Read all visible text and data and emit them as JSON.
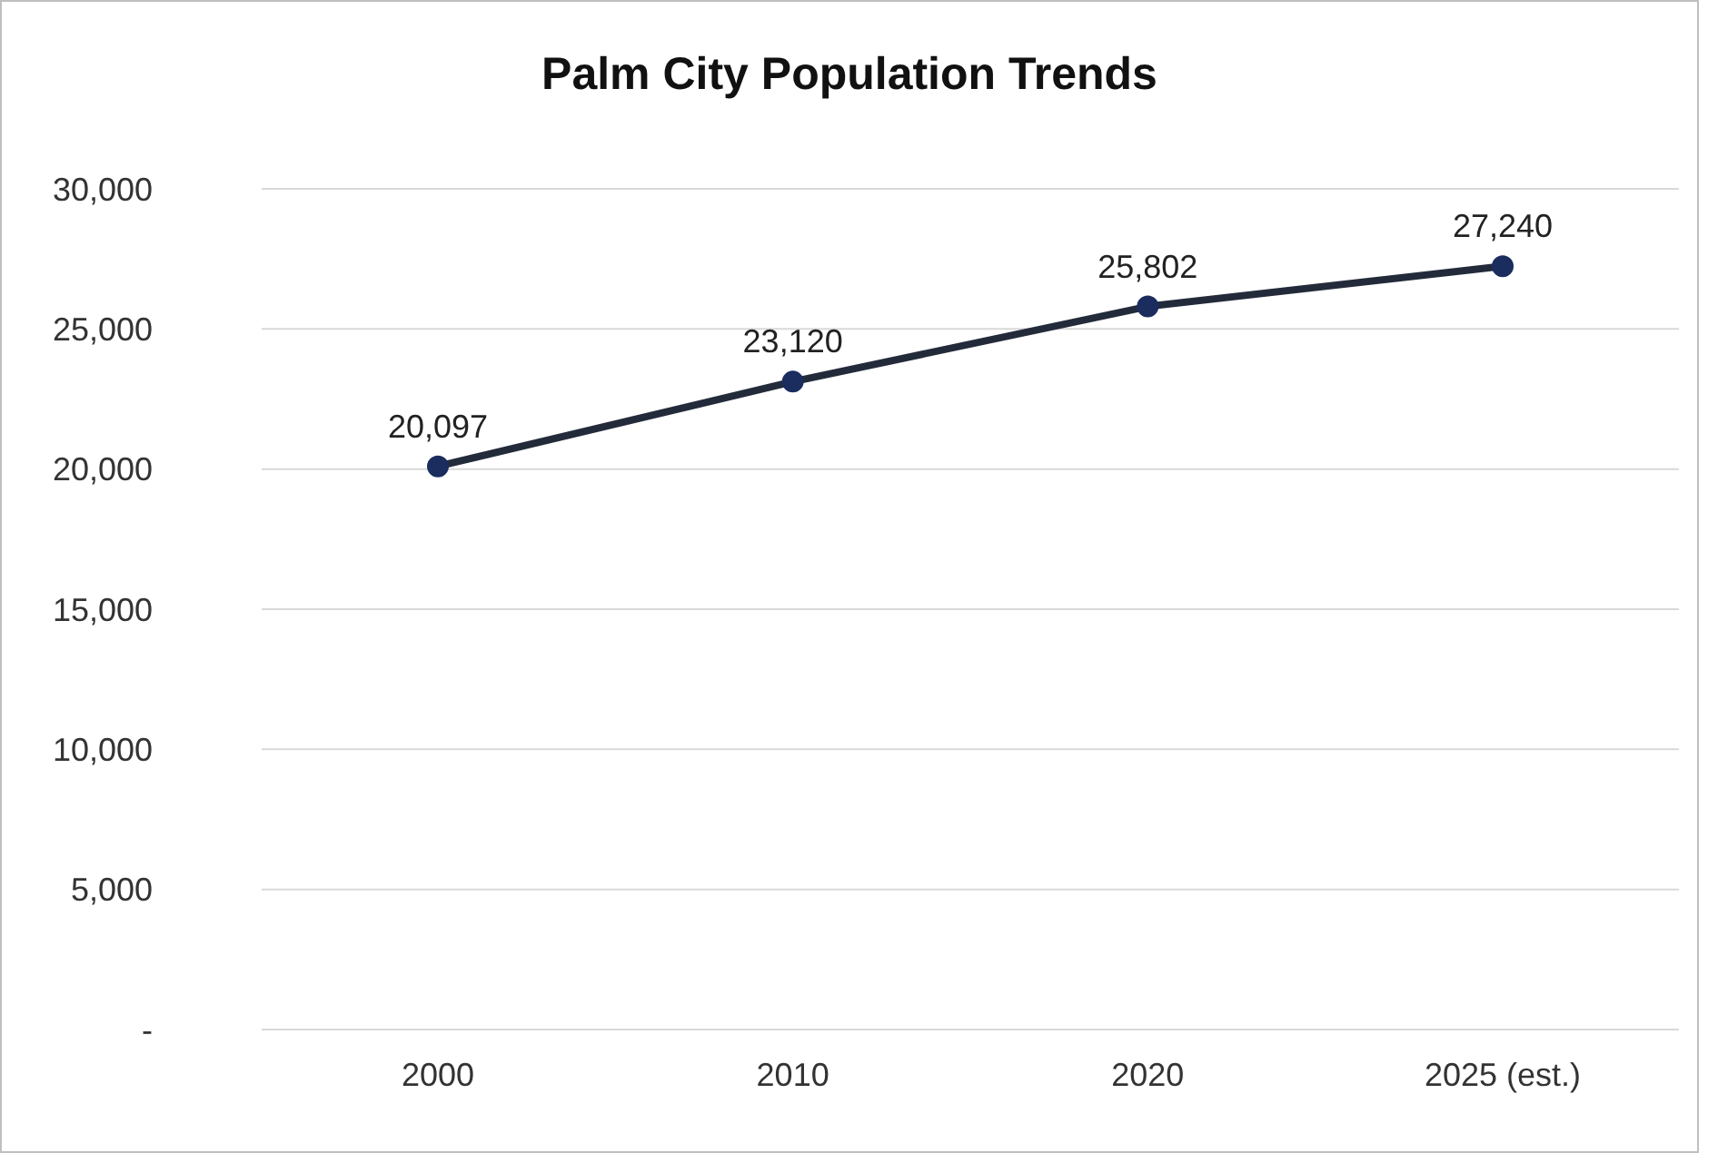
{
  "chart_data": {
    "type": "line",
    "title": "Palm City Population Trends",
    "categories": [
      "2000",
      "2010",
      "2020",
      "2025 (est.)"
    ],
    "series": [
      {
        "color": "#232b3b",
        "values": [
          20097,
          23120,
          25802,
          27240
        ],
        "value_labels": [
          "20,097",
          "23,120",
          "25,802",
          "27,240"
        ]
      }
    ],
    "ylim": [
      0,
      30000
    ],
    "yticks": [
      {
        "value": 0,
        "label": "-"
      },
      {
        "value": 5000,
        "label": "5,000"
      },
      {
        "value": 10000,
        "label": "10,000"
      },
      {
        "value": 15000,
        "label": "15,000"
      },
      {
        "value": 20000,
        "label": "20,000"
      },
      {
        "value": 25000,
        "label": "25,000"
      },
      {
        "value": 30000,
        "label": "30,000"
      }
    ],
    "grid": "y",
    "marker": "circle",
    "line_style": "solid"
  }
}
